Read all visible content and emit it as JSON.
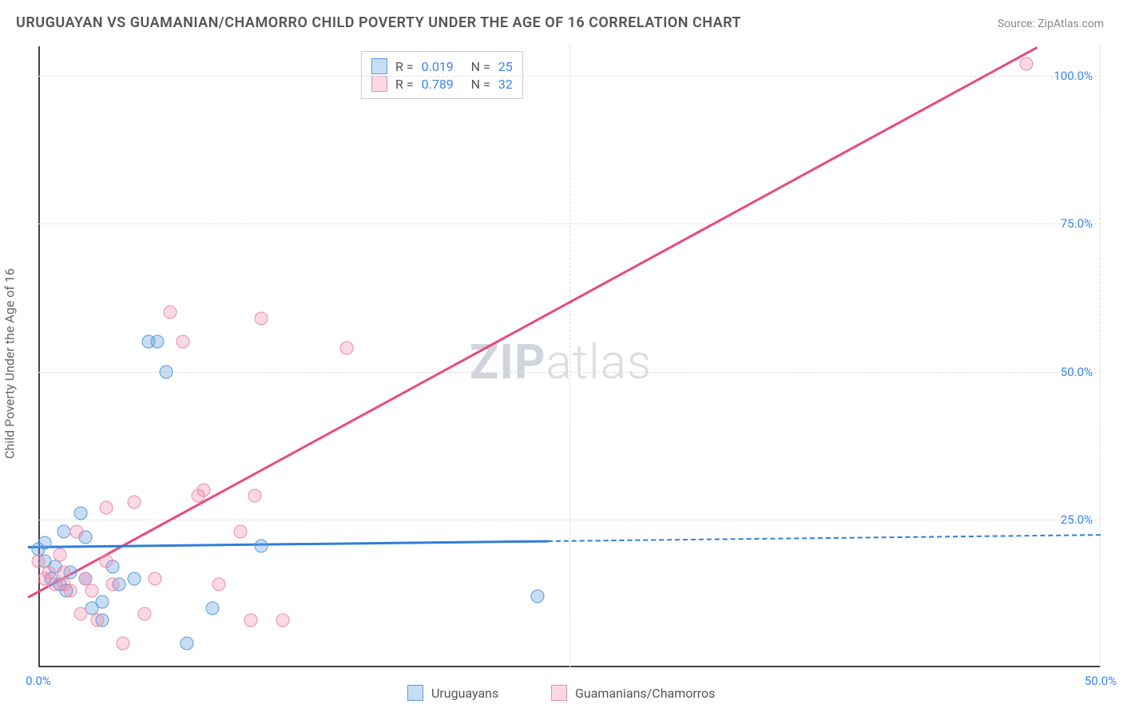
{
  "title": "URUGUAYAN VS GUAMANIAN/CHAMORRO CHILD POVERTY UNDER THE AGE OF 16 CORRELATION CHART",
  "source_label": "Source:",
  "source_value": "ZipAtlas.com",
  "ylabel": "Child Poverty Under the Age of 16",
  "watermark_bold": "ZIP",
  "watermark_rest": "atlas",
  "chart": {
    "type": "scatter",
    "xlim": [
      0,
      50
    ],
    "ylim": [
      0,
      105
    ],
    "xticks": [
      {
        "v": 0,
        "label": "0.0%"
      },
      {
        "v": 50,
        "label": "50.0%"
      }
    ],
    "yticks": [
      {
        "v": 25,
        "label": "25.0%"
      },
      {
        "v": 50,
        "label": "50.0%"
      },
      {
        "v": 75,
        "label": "75.0%"
      },
      {
        "v": 100,
        "label": "100.0%"
      }
    ],
    "grid_color": "#dddddd",
    "axis_color": "#444444",
    "background_color": "#ffffff",
    "marker_size": 17,
    "series": [
      {
        "name": "Uruguayans",
        "color_fill": "rgba(96,159,224,0.35)",
        "color_stroke": "#5a9bd8",
        "R": "0.019",
        "N": "25",
        "trend": {
          "x1": -0.5,
          "y1": 20.5,
          "x2": 24,
          "y2": 21.5,
          "solid_until_x": 24,
          "dash_to_x": 50
        },
        "points": [
          {
            "x": 0.0,
            "y": 20
          },
          {
            "x": 0.3,
            "y": 18
          },
          {
            "x": 0.3,
            "y": 21
          },
          {
            "x": 0.6,
            "y": 15
          },
          {
            "x": 0.8,
            "y": 17
          },
          {
            "x": 1.0,
            "y": 14
          },
          {
            "x": 1.2,
            "y": 23
          },
          {
            "x": 1.3,
            "y": 13
          },
          {
            "x": 1.5,
            "y": 16
          },
          {
            "x": 2.0,
            "y": 26
          },
          {
            "x": 2.2,
            "y": 22
          },
          {
            "x": 2.2,
            "y": 15
          },
          {
            "x": 2.5,
            "y": 10
          },
          {
            "x": 3.0,
            "y": 11
          },
          {
            "x": 3.0,
            "y": 8
          },
          {
            "x": 3.5,
            "y": 17
          },
          {
            "x": 3.8,
            "y": 14
          },
          {
            "x": 4.5,
            "y": 15
          },
          {
            "x": 5.2,
            "y": 55
          },
          {
            "x": 5.6,
            "y": 55
          },
          {
            "x": 6.0,
            "y": 50
          },
          {
            "x": 7.0,
            "y": 4
          },
          {
            "x": 8.2,
            "y": 10
          },
          {
            "x": 10.5,
            "y": 20.5
          },
          {
            "x": 23.5,
            "y": 12
          }
        ]
      },
      {
        "name": "Guamanians/Chamorros",
        "color_fill": "rgba(239,130,168,0.30)",
        "color_stroke": "#ec8ca9",
        "R": "0.789",
        "N": "32",
        "trend": {
          "x1": -0.5,
          "y1": 12,
          "x2": 47,
          "y2": 105
        },
        "points": [
          {
            "x": 0.0,
            "y": 18
          },
          {
            "x": 0.3,
            "y": 15
          },
          {
            "x": 0.5,
            "y": 16
          },
          {
            "x": 0.8,
            "y": 14
          },
          {
            "x": 1.0,
            "y": 19
          },
          {
            "x": 1.2,
            "y": 14
          },
          {
            "x": 1.2,
            "y": 16
          },
          {
            "x": 1.5,
            "y": 13
          },
          {
            "x": 1.8,
            "y": 23
          },
          {
            "x": 2.0,
            "y": 9
          },
          {
            "x": 2.2,
            "y": 15
          },
          {
            "x": 2.5,
            "y": 13
          },
          {
            "x": 2.8,
            "y": 8
          },
          {
            "x": 3.2,
            "y": 18
          },
          {
            "x": 3.2,
            "y": 27
          },
          {
            "x": 3.5,
            "y": 14
          },
          {
            "x": 4.0,
            "y": 4
          },
          {
            "x": 4.5,
            "y": 28
          },
          {
            "x": 5.0,
            "y": 9
          },
          {
            "x": 5.5,
            "y": 15
          },
          {
            "x": 6.2,
            "y": 60
          },
          {
            "x": 6.8,
            "y": 55
          },
          {
            "x": 7.5,
            "y": 29
          },
          {
            "x": 7.8,
            "y": 30
          },
          {
            "x": 8.5,
            "y": 14
          },
          {
            "x": 9.5,
            "y": 23
          },
          {
            "x": 10.0,
            "y": 8
          },
          {
            "x": 10.2,
            "y": 29
          },
          {
            "x": 10.5,
            "y": 59
          },
          {
            "x": 11.5,
            "y": 8
          },
          {
            "x": 14.5,
            "y": 54
          },
          {
            "x": 46.5,
            "y": 102
          }
        ]
      }
    ]
  },
  "stats_box": {
    "legend_swatch_blue": true,
    "legend_swatch_pink": true
  },
  "bottom_legend": [
    {
      "color": "blue",
      "label": "Uruguayans"
    },
    {
      "color": "pink",
      "label": "Guamanians/Chamorros"
    }
  ]
}
